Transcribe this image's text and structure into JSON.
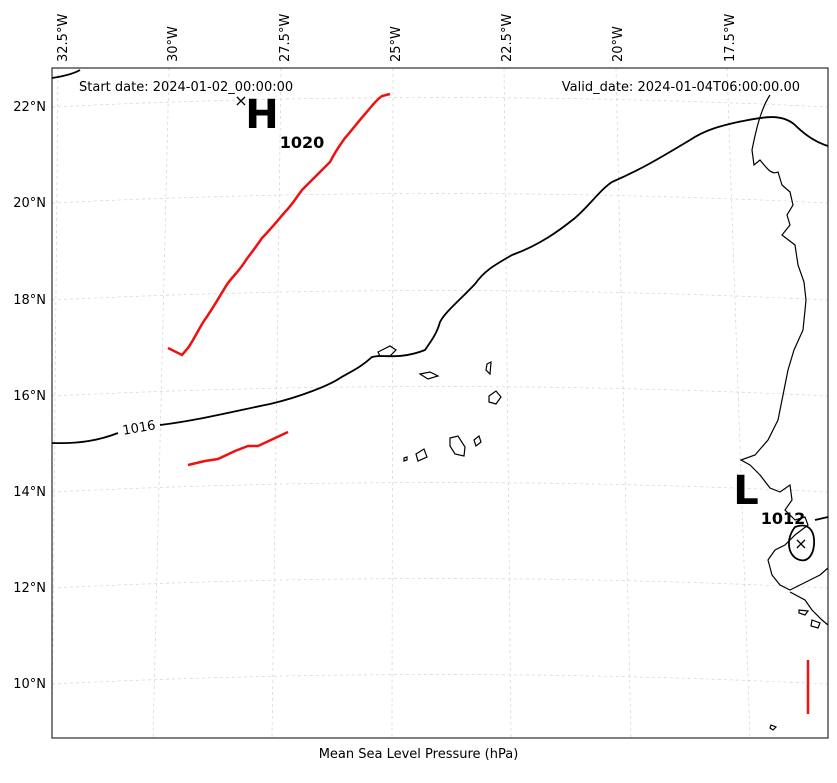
{
  "header": {
    "start_date": "Start date: 2024-01-02_00:00:00",
    "valid_date": "Valid_date: 2024-01-04T06:00:00.00"
  },
  "caption": "Mean Sea Level Pressure (hPa)",
  "longitude_labels": [
    "32.5°W",
    "30°W",
    "27.5°W",
    "25°W",
    "22.5°W",
    "20°W",
    "17.5°W"
  ],
  "latitude_labels": [
    "22°N",
    "20°N",
    "18°N",
    "16°N",
    "14°N",
    "12°N",
    "10°N"
  ],
  "pressure_systems": {
    "high": {
      "symbol": "H",
      "value": "1020",
      "marker": "×"
    },
    "low": {
      "symbol": "L",
      "value": "1012",
      "marker": "×"
    }
  },
  "isobars": {
    "contour_label": "1016"
  },
  "colors": {
    "isobar": "#000000",
    "warm_line": "#ee1111",
    "grid": "#cccccc"
  }
}
